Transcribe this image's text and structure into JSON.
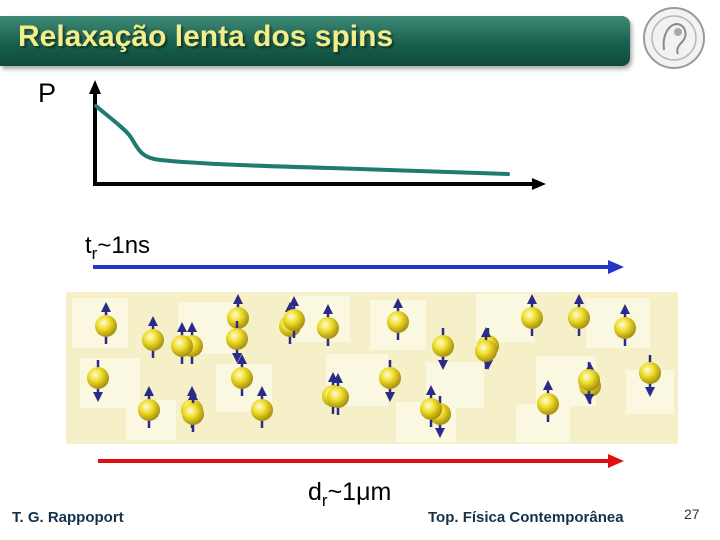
{
  "slide": {
    "title": "Relaxação lenta dos spins",
    "axis_label": "P",
    "time_label_main": "t",
    "time_label_sub": "r",
    "time_label_rest": "~1ns",
    "dist_label_main": "d",
    "dist_label_sub": "r",
    "dist_label_rest": "~1μm",
    "author": "T. G. Rappoport",
    "course": "Top. Física Contemporânea",
    "page_number": "27"
  },
  "colors": {
    "title_bar": "#19604f",
    "title_text": "#f4ee8a",
    "decay_curve": "#1f7a70",
    "time_arrow": "#2336c8",
    "distance_arrow": "#e01010",
    "spin_ball": "#e8d51a",
    "spin_arrow": "#2a2a88"
  },
  "icons": {
    "seal": "university-seal-icon"
  },
  "spins": [
    {
      "dir": "up"
    },
    {
      "dir": "up"
    },
    {
      "dir": "up"
    },
    {
      "dir": "up"
    },
    {
      "dir": "up"
    },
    {
      "dir": "up"
    },
    {
      "dir": "up"
    },
    {
      "dir": "down"
    },
    {
      "dir": "down"
    },
    {
      "dir": "up"
    },
    {
      "dir": "up"
    },
    {
      "dir": "up"
    },
    {
      "dir": "down"
    },
    {
      "dir": "up"
    },
    {
      "dir": "up"
    },
    {
      "dir": "up"
    },
    {
      "dir": "up"
    },
    {
      "dir": "up"
    },
    {
      "dir": "down"
    },
    {
      "dir": "down"
    },
    {
      "dir": "up"
    },
    {
      "dir": "up"
    },
    {
      "dir": "down"
    },
    {
      "dir": "up"
    },
    {
      "dir": "up"
    },
    {
      "dir": "up"
    },
    {
      "dir": "down"
    },
    {
      "dir": "up"
    },
    {
      "dir": "up"
    },
    {
      "dir": "up"
    },
    {
      "dir": "down"
    }
  ]
}
